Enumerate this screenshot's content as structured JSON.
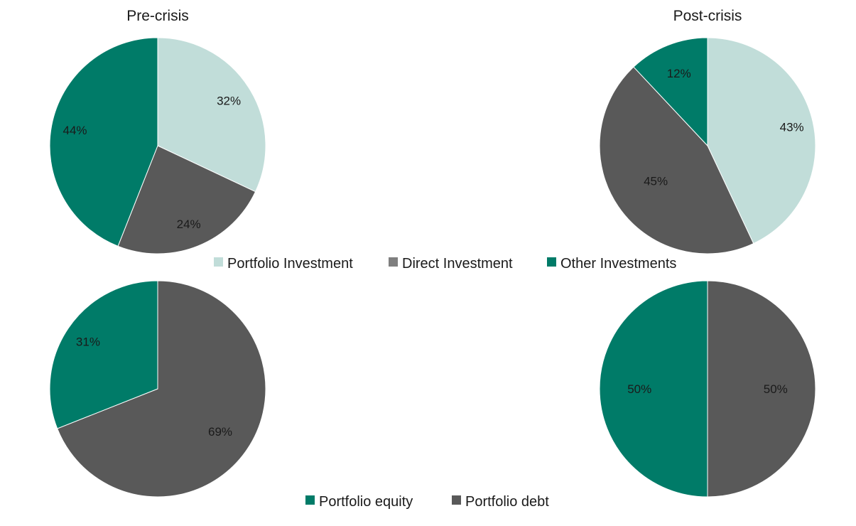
{
  "colors": {
    "portfolio_investment": "#c1ddd9",
    "direct_investment": "#595959",
    "other_investments": "#007b68",
    "portfolio_equity": "#007b68",
    "portfolio_debt": "#595959",
    "legend_direct_swatch": "#7f7f7f"
  },
  "titles": {
    "left": "Pre-crisis",
    "right": "Post-crisis"
  },
  "legend_top": [
    {
      "label": "Portfolio Investment",
      "color_key": "portfolio_investment"
    },
    {
      "label": "Direct Investment",
      "color_key": "legend_direct_swatch"
    },
    {
      "label": "Other Investments",
      "color_key": "other_investments"
    }
  ],
  "legend_bottom": [
    {
      "label": "Portfolio equity",
      "color_key": "portfolio_equity"
    },
    {
      "label": "Portfolio debt",
      "color_key": "portfolio_debt"
    }
  ],
  "chart_data": [
    {
      "type": "pie",
      "title": "Pre-crisis",
      "slices": [
        {
          "name": "Portfolio Investment",
          "value": 32,
          "label": "32%",
          "color_key": "portfolio_investment"
        },
        {
          "name": "Direct Investment",
          "value": 24,
          "label": "24%",
          "color_key": "direct_investment"
        },
        {
          "name": "Other Investments",
          "value": 44,
          "label": "44%",
          "color_key": "other_investments"
        }
      ]
    },
    {
      "type": "pie",
      "title": "Post-crisis",
      "slices": [
        {
          "name": "Portfolio Investment",
          "value": 43,
          "label": "43%",
          "color_key": "portfolio_investment"
        },
        {
          "name": "Direct Investment",
          "value": 45,
          "label": "45%",
          "color_key": "direct_investment"
        },
        {
          "name": "Other Investments",
          "value": 12,
          "label": "12%",
          "color_key": "other_investments"
        }
      ]
    },
    {
      "type": "pie",
      "slices": [
        {
          "name": "Portfolio debt",
          "value": 69,
          "label": "69%",
          "color_key": "portfolio_debt"
        },
        {
          "name": "Portfolio equity",
          "value": 31,
          "label": "31%",
          "color_key": "portfolio_equity"
        }
      ]
    },
    {
      "type": "pie",
      "slices": [
        {
          "name": "Portfolio debt",
          "value": 50,
          "label": "50%",
          "color_key": "portfolio_debt"
        },
        {
          "name": "Portfolio equity",
          "value": 50,
          "label": "50%",
          "color_key": "portfolio_equity"
        }
      ]
    }
  ]
}
